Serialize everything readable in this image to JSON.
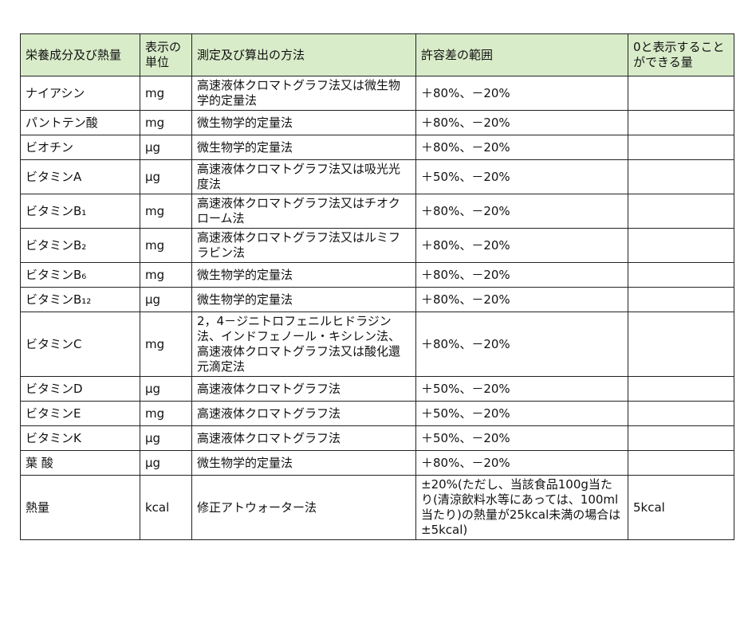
{
  "table": {
    "headers": [
      "栄養成分及び熱量",
      "表示の単位",
      "測定及び算出の方法",
      "許容差の範囲",
      "0と表示することができる量"
    ],
    "rows": [
      [
        "ナイアシン",
        "mg",
        "高速液体クロマトグラフ法又は微生物学的定量法",
        "＋80%、－20%"
      ],
      [
        "パントテン酸",
        "mg",
        "微生物学的定量法",
        "＋80%、－20%"
      ],
      [
        "ビオチン",
        "μg",
        "微生物学的定量法",
        "＋80%、－20%"
      ],
      [
        "ビタミンA",
        "μg",
        "高速液体クロマトグラフ法又は吸光光度法",
        "＋50%、－20%"
      ],
      [
        "ビタミンB₁",
        "mg",
        "高速液体クロマトグラフ法又はチオクローム法",
        "＋80%、－20%"
      ],
      [
        "ビタミンB₂",
        "mg",
        "高速液体クロマトグラフ法又はルミフラビン法",
        "＋80%、－20%"
      ],
      [
        "ビタミンB₆",
        "mg",
        "微生物学的定量法",
        "＋80%、－20%"
      ],
      [
        "ビタミンB₁₂",
        "μg",
        "微生物学的定量法",
        "＋80%、－20%"
      ],
      [
        "ビタミンC",
        "mg",
        "2，4－ジニトロフェニルヒドラジン法、インドフェノール・キシレン法、高速液体クロマトグラフ法又は酸化還元滴定法",
        "＋80%、－20%"
      ],
      [
        "ビタミンD",
        "μg",
        "高速液体クロマトグラフ法",
        "＋50%、－20%"
      ],
      [
        "ビタミンE",
        "mg",
        "高速液体クロマトグラフ法",
        "＋50%、－20%"
      ],
      [
        "ビタミンK",
        "μg",
        "高速液体クロマトグラフ法",
        "＋50%、－20%"
      ],
      [
        "葉 酸",
        "μg",
        "微生物学的定量法",
        "＋80%、－20%"
      ],
      [
        "熱量",
        "kcal",
        "修正アトウォーター法",
        "±20%(ただし、当該食品100g当たり(清涼飲料水等にあっては、100ml当たり)の熱量が25kcal未満の場合は±5kcal)",
        "5kcal"
      ]
    ]
  }
}
